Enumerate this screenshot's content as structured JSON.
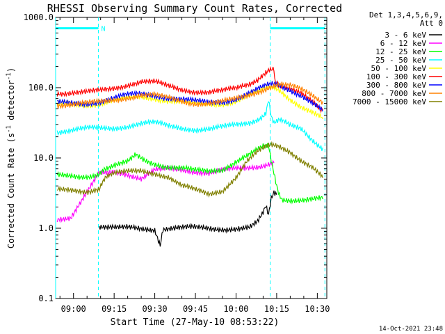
{
  "chart_data": {
    "type": "line",
    "title": "RHESSI Observing Summary Count Rates, Corrected",
    "xlabel": "Start Time (27-May-10 08:53:22)",
    "ylabel_main": "Corrected Count Rate (s",
    "ylabel_sup1": "-1",
    "ylabel_mid": " detector",
    "ylabel_sup2": "-1",
    "ylabel_end": ")",
    "y_scale": "log",
    "ylim": [
      0.1,
      1000
    ],
    "xlim_minutes": [
      533.4,
      633.5
    ],
    "x_ticks": [
      {
        "label": "09:00",
        "minutes": 540
      },
      {
        "label": "09:15",
        "minutes": 555
      },
      {
        "label": "09:30",
        "minutes": 570
      },
      {
        "label": "09:45",
        "minutes": 585
      },
      {
        "label": "10:00",
        "minutes": 600
      },
      {
        "label": "10:15",
        "minutes": 615
      },
      {
        "label": "10:30",
        "minutes": 630
      }
    ],
    "y_ticks": [
      {
        "label": "0.1",
        "value": 0.1
      },
      {
        "label": "1.0",
        "value": 1
      },
      {
        "label": "10.0",
        "value": 10
      },
      {
        "label": "100.0",
        "value": 100
      },
      {
        "label": "1000.0",
        "value": 1000
      }
    ],
    "legend_placement": "top-right",
    "legend_header_1": "Det 1,3,4,5,6,9,",
    "legend_header_2": "Att 0",
    "timestamp": "14-Oct-2021 23:48",
    "flag_label": "N",
    "annotations": {
      "boundary_lines_minutes": [
        533.4,
        549.2,
        612.6,
        632.8
      ],
      "night_bars": [
        {
          "start": 533.4,
          "end": 549.2,
          "value": 700
        },
        {
          "start": 612.6,
          "end": 632.8,
          "value": 700
        }
      ]
    },
    "series": [
      {
        "name": "3 - 6 keV",
        "color": "#000000",
        "points": [
          [
            549.5,
            1.0
          ],
          [
            560,
            1.0
          ],
          [
            570,
            0.98
          ],
          [
            572,
            0.6
          ],
          [
            573,
            1.0
          ],
          [
            585,
            1.0
          ],
          [
            600,
            1.0
          ],
          [
            605,
            1.0
          ],
          [
            608,
            1.2
          ],
          [
            610,
            1.6
          ],
          [
            611,
            2.0
          ],
          [
            612,
            1.5
          ],
          [
            613,
            2.6
          ],
          [
            614,
            3.2
          ],
          [
            615,
            3.0
          ]
        ]
      },
      {
        "name": "6 - 12 keV",
        "color": "#ff00ff",
        "points": [
          [
            534,
            1.4
          ],
          [
            539,
            1.4
          ],
          [
            549.5,
            6.5
          ],
          [
            555,
            6.6
          ],
          [
            560,
            6.0
          ],
          [
            565,
            5.0
          ],
          [
            570,
            6.5
          ],
          [
            575,
            7.0
          ],
          [
            580,
            7.0
          ],
          [
            585,
            6.5
          ],
          [
            590,
            6.0
          ],
          [
            595,
            6.5
          ],
          [
            600,
            7.0
          ],
          [
            605,
            7.5
          ],
          [
            610,
            8.0
          ],
          [
            613,
            8.5
          ],
          [
            614,
            8.5
          ]
        ]
      },
      {
        "name": "12 - 25 keV",
        "color": "#00ff00",
        "points": [
          [
            534,
            5.5
          ],
          [
            540,
            5.5
          ],
          [
            545,
            5.6
          ],
          [
            549.5,
            5.6
          ],
          [
            552,
            7.0
          ],
          [
            555,
            7.5
          ],
          [
            560,
            8.5
          ],
          [
            563,
            11.0
          ],
          [
            566,
            9.5
          ],
          [
            570,
            8.5
          ],
          [
            575,
            7.5
          ],
          [
            580,
            7.0
          ],
          [
            585,
            6.5
          ],
          [
            590,
            6.5
          ],
          [
            595,
            7.0
          ],
          [
            600,
            9.0
          ],
          [
            605,
            11.0
          ],
          [
            610,
            14.0
          ],
          [
            612,
            14.5
          ],
          [
            613,
            9.0
          ],
          [
            615,
            4.0
          ],
          [
            616,
            3.0
          ],
          [
            617,
            2.6
          ],
          [
            620,
            2.6
          ],
          [
            625,
            2.6
          ],
          [
            632,
            2.6
          ]
        ]
      },
      {
        "name": "25 - 50 keV",
        "color": "#00ffff",
        "points": [
          [
            534,
            24
          ],
          [
            540,
            25
          ],
          [
            545,
            26
          ],
          [
            550,
            26
          ],
          [
            555,
            27
          ],
          [
            560,
            29
          ],
          [
            565,
            31
          ],
          [
            570,
            31
          ],
          [
            575,
            28
          ],
          [
            580,
            27
          ],
          [
            585,
            26
          ],
          [
            590,
            26
          ],
          [
            595,
            27
          ],
          [
            600,
            29
          ],
          [
            605,
            32
          ],
          [
            609,
            38
          ],
          [
            611,
            45
          ],
          [
            612,
            70
          ],
          [
            613,
            40
          ],
          [
            614,
            32
          ],
          [
            616,
            35
          ],
          [
            618,
            32
          ],
          [
            620,
            28
          ],
          [
            624,
            25
          ],
          [
            628,
            18
          ],
          [
            632,
            14
          ]
        ]
      },
      {
        "name": "50 - 100 keV",
        "color": "#ffff00",
        "points": [
          [
            534,
            57
          ],
          [
            540,
            58
          ],
          [
            545,
            58
          ],
          [
            550,
            60
          ],
          [
            555,
            65
          ],
          [
            560,
            70
          ],
          [
            565,
            74
          ],
          [
            570,
            72
          ],
          [
            575,
            66
          ],
          [
            580,
            62
          ],
          [
            585,
            58
          ],
          [
            590,
            58
          ],
          [
            595,
            60
          ],
          [
            600,
            66
          ],
          [
            605,
            78
          ],
          [
            609,
            90
          ],
          [
            612,
            100
          ],
          [
            614,
            98
          ],
          [
            616,
            92
          ],
          [
            618,
            80
          ],
          [
            620,
            70
          ],
          [
            624,
            55
          ],
          [
            628,
            45
          ],
          [
            632,
            36
          ]
        ]
      },
      {
        "name": "100 - 300 keV",
        "color": "#ff0000",
        "points": [
          [
            534,
            86
          ],
          [
            540,
            84
          ],
          [
            545,
            84
          ],
          [
            550,
            90
          ],
          [
            555,
            100
          ],
          [
            560,
            112
          ],
          [
            565,
            122
          ],
          [
            570,
            118
          ],
          [
            575,
            104
          ],
          [
            580,
            95
          ],
          [
            585,
            90
          ],
          [
            590,
            86
          ],
          [
            595,
            88
          ],
          [
            600,
            96
          ],
          [
            605,
            115
          ],
          [
            608,
            135
          ],
          [
            610,
            160
          ],
          [
            612,
            185
          ],
          [
            614,
            190
          ],
          [
            614.5,
            112
          ],
          [
            616,
            105
          ],
          [
            620,
            92
          ],
          [
            624,
            80
          ],
          [
            628,
            65
          ],
          [
            632,
            48
          ]
        ]
      },
      {
        "name": "300 - 800 keV",
        "color": "#0000ff",
        "points": [
          [
            534,
            60
          ],
          [
            540,
            60
          ],
          [
            545,
            61
          ],
          [
            550,
            64
          ],
          [
            555,
            70
          ],
          [
            560,
            77
          ],
          [
            565,
            82
          ],
          [
            570,
            80
          ],
          [
            575,
            72
          ],
          [
            580,
            67
          ],
          [
            585,
            63
          ],
          [
            590,
            62
          ],
          [
            595,
            64
          ],
          [
            600,
            70
          ],
          [
            605,
            82
          ],
          [
            609,
            96
          ],
          [
            612,
            108
          ],
          [
            614,
            112
          ],
          [
            616,
            108
          ],
          [
            620,
            95
          ],
          [
            624,
            80
          ],
          [
            628,
            62
          ],
          [
            632,
            46
          ]
        ]
      },
      {
        "name": "800 - 7000 keV",
        "color": "#ff8000",
        "points": [
          [
            534,
            58
          ],
          [
            540,
            58
          ],
          [
            545,
            59
          ],
          [
            550,
            62
          ],
          [
            555,
            68
          ],
          [
            560,
            74
          ],
          [
            565,
            78
          ],
          [
            570,
            76
          ],
          [
            575,
            70
          ],
          [
            580,
            65
          ],
          [
            585,
            61
          ],
          [
            590,
            60
          ],
          [
            595,
            62
          ],
          [
            600,
            68
          ],
          [
            605,
            80
          ],
          [
            609,
            92
          ],
          [
            612,
            102
          ],
          [
            614,
            108
          ],
          [
            616,
            110
          ],
          [
            620,
            104
          ],
          [
            624,
            92
          ],
          [
            628,
            78
          ],
          [
            632,
            64
          ]
        ]
      },
      {
        "name": "7000 - 15000 keV",
        "color": "#808000",
        "points": [
          [
            534,
            3.4
          ],
          [
            540,
            3.4
          ],
          [
            545,
            3.4
          ],
          [
            549.5,
            3.4
          ],
          [
            552,
            5.5
          ],
          [
            555,
            6.0
          ],
          [
            560,
            6.2
          ],
          [
            565,
            6.5
          ],
          [
            570,
            6.2
          ],
          [
            575,
            5.5
          ],
          [
            580,
            4.0
          ],
          [
            585,
            3.4
          ],
          [
            590,
            3.0
          ],
          [
            595,
            3.5
          ],
          [
            600,
            5.5
          ],
          [
            604,
            9.0
          ],
          [
            608,
            12.0
          ],
          [
            611,
            14.0
          ],
          [
            613,
            15.0
          ],
          [
            616,
            14.5
          ],
          [
            620,
            12.5
          ],
          [
            624,
            9.5
          ],
          [
            628,
            7.5
          ],
          [
            632,
            5.2
          ]
        ]
      }
    ]
  }
}
